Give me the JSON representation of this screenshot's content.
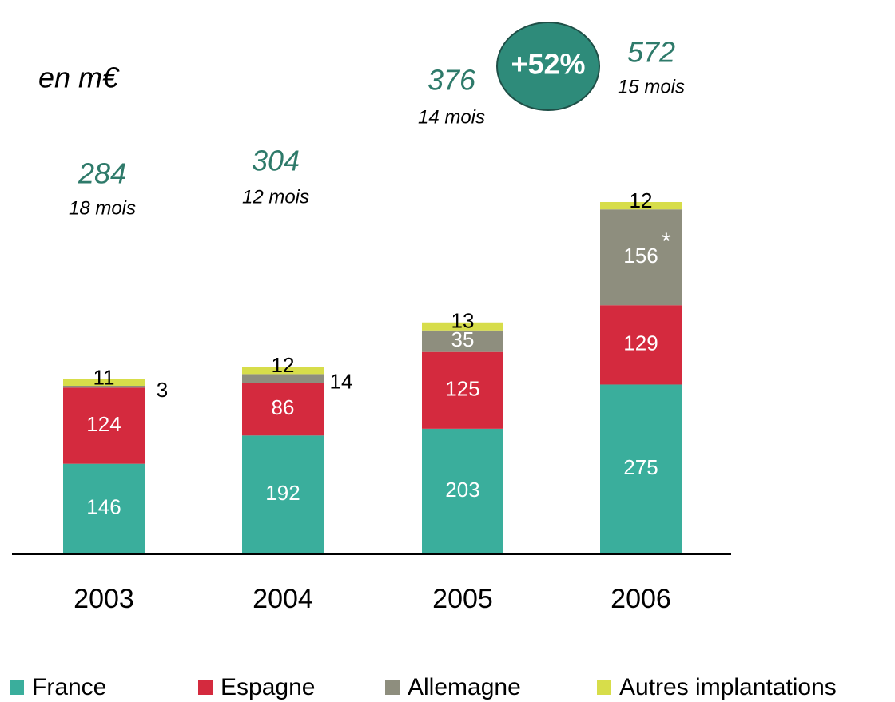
{
  "chart_data": {
    "type": "stacked_bar",
    "unit": "en m€",
    "categories": [
      "2003",
      "2004",
      "2005",
      "2006"
    ],
    "series": [
      {
        "name": "France",
        "color": "#3aae9c",
        "values": [
          146,
          192,
          203,
          275
        ]
      },
      {
        "name": "Espagne",
        "color": "#d42a3e",
        "values": [
          124,
          86,
          125,
          129
        ]
      },
      {
        "name": "Allemagne",
        "color": "#8e8e7e",
        "values": [
          3,
          14,
          35,
          156
        ]
      },
      {
        "name": "Autres implantations",
        "color": "#d7dd4a",
        "values": [
          11,
          12,
          13,
          12
        ]
      }
    ],
    "totals": [
      284,
      304,
      376,
      572
    ],
    "periods": [
      "18 mois",
      "12 mois",
      "14 mois",
      "15 mois"
    ],
    "growth": "+52%",
    "note": "*"
  }
}
